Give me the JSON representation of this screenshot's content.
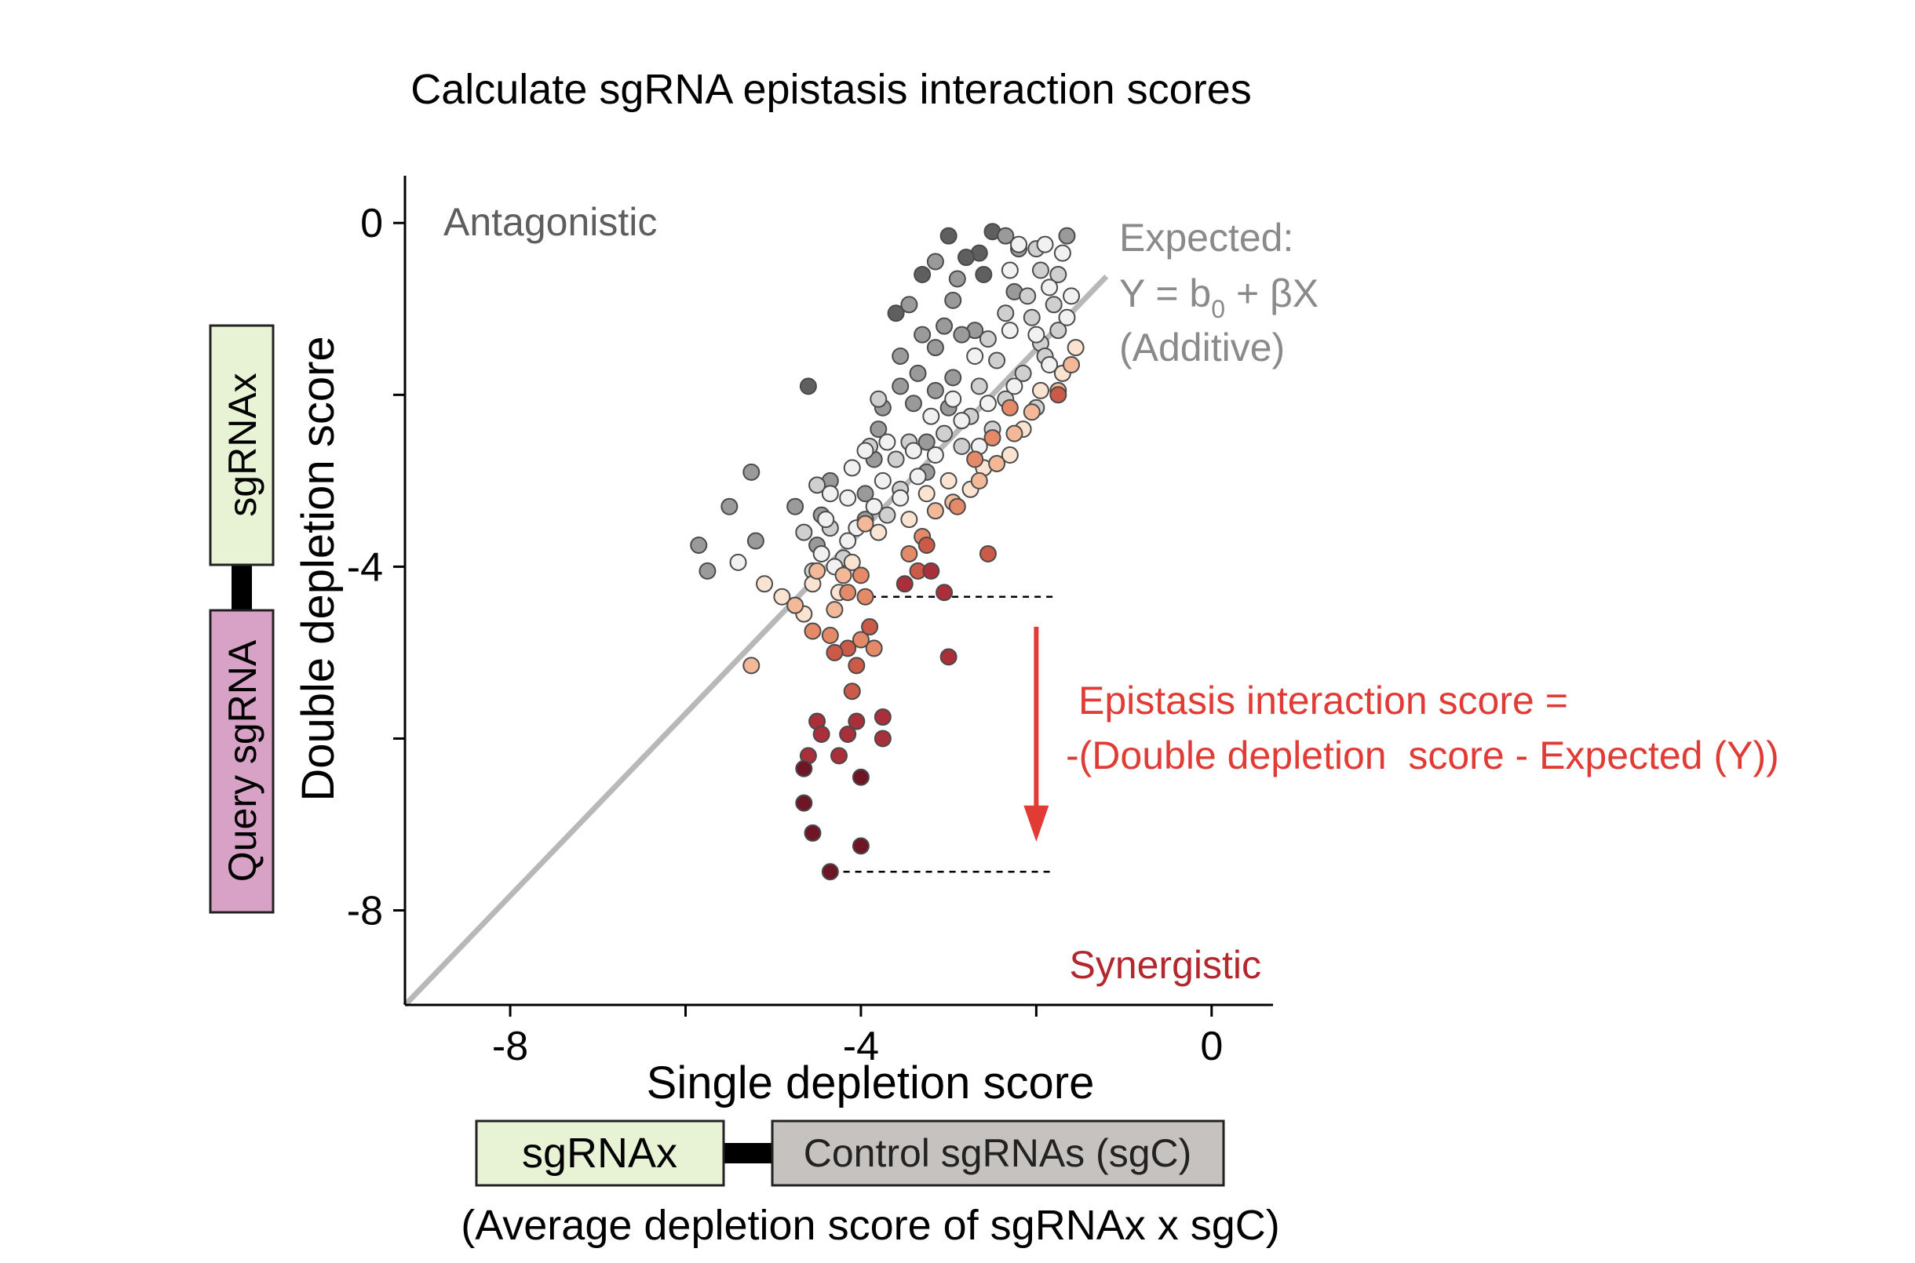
{
  "chart_data": {
    "type": "scatter",
    "title": "Calculate sgRNA epistasis interaction scores",
    "xlabel": "Single depletion score",
    "ylabel": "Double depletion score",
    "xlim": [
      -9.2,
      0.7
    ],
    "ylim": [
      -9.1,
      0.55
    ],
    "x_ticks": [
      -8,
      -6,
      -4,
      -2,
      0
    ],
    "x_tick_labels": [
      "-8",
      "",
      "-4",
      "",
      "0"
    ],
    "y_ticks": [
      0,
      -2,
      -4,
      -6,
      -8
    ],
    "y_tick_labels": [
      "0",
      "",
      "-4",
      "",
      "-8"
    ],
    "grid": false,
    "legend": "none",
    "colors": {
      "expected_line": "#b8b8b8",
      "antagonistic_text": "#5e5e5e",
      "expected_text": "#8a8a8a",
      "synergistic_text": "#b2282e",
      "epistasis_text": "#e03c35",
      "arrow": "#e03c35",
      "point_outline": "#4a4a4a",
      "palette": [
        "#5f5f5f",
        "#9a9a9a",
        "#cfcfcf",
        "#f1f1f1",
        "#fbe3d2",
        "#f2b898",
        "#e58a68",
        "#cc5a48",
        "#a9303a",
        "#6e1526"
      ]
    },
    "expected_line": {
      "intercept": 0.65,
      "slope": 1.06,
      "x_range": [
        -9.2,
        -1.2
      ]
    },
    "annotations": {
      "antagonistic": "Antagonistic",
      "synergistic": "Synergistic",
      "expected_line1": "Expected:",
      "expected_line2_prefix": "Y = b",
      "expected_line2_sub": "0",
      "expected_line2_suffix": " + βX",
      "expected_line3": "(Additive)",
      "epistasis_line1": "Epistasis interaction score =",
      "epistasis_line2": "-(Double depletion  score - Expected (Y))"
    },
    "guides": {
      "upper_dash": {
        "x": [
          -3.9,
          -1.8
        ],
        "y": -4.35
      },
      "lower_dash": {
        "x": [
          -4.2,
          -1.8
        ],
        "y": -7.55
      },
      "arrow": {
        "x": -2.0,
        "y_from": -4.7,
        "y_to": -7.2
      }
    },
    "points": [
      {
        "x": -3.0,
        "y": -0.15,
        "c": 0
      },
      {
        "x": -2.5,
        "y": -0.1,
        "c": 0
      },
      {
        "x": -2.65,
        "y": -0.35,
        "c": 0
      },
      {
        "x": -2.8,
        "y": -0.4,
        "c": 0
      },
      {
        "x": -3.3,
        "y": -0.6,
        "c": 0
      },
      {
        "x": -2.6,
        "y": -0.6,
        "c": 0
      },
      {
        "x": -3.6,
        "y": -1.05,
        "c": 0
      },
      {
        "x": -4.6,
        "y": -1.9,
        "c": 0
      },
      {
        "x": -2.35,
        "y": -0.15,
        "c": 1
      },
      {
        "x": -1.65,
        "y": -0.15,
        "c": 1
      },
      {
        "x": -2.2,
        "y": -0.3,
        "c": 1
      },
      {
        "x": -3.15,
        "y": -0.45,
        "c": 1
      },
      {
        "x": -2.9,
        "y": -0.65,
        "c": 1
      },
      {
        "x": -2.25,
        "y": -0.8,
        "c": 1
      },
      {
        "x": -3.45,
        "y": -0.95,
        "c": 1
      },
      {
        "x": -2.95,
        "y": -0.9,
        "c": 1
      },
      {
        "x": -2.7,
        "y": -1.25,
        "c": 1
      },
      {
        "x": -3.3,
        "y": -1.3,
        "c": 1
      },
      {
        "x": -3.05,
        "y": -1.2,
        "c": 1
      },
      {
        "x": -2.85,
        "y": -1.3,
        "c": 1
      },
      {
        "x": -3.15,
        "y": -1.45,
        "c": 1
      },
      {
        "x": -3.55,
        "y": -1.55,
        "c": 1
      },
      {
        "x": -3.35,
        "y": -1.75,
        "c": 1
      },
      {
        "x": -2.95,
        "y": -1.8,
        "c": 1
      },
      {
        "x": -3.55,
        "y": -1.9,
        "c": 1
      },
      {
        "x": -3.15,
        "y": -1.95,
        "c": 1
      },
      {
        "x": -3.75,
        "y": -2.15,
        "c": 1
      },
      {
        "x": -3.4,
        "y": -2.1,
        "c": 1
      },
      {
        "x": -3.0,
        "y": -2.15,
        "c": 1
      },
      {
        "x": -3.8,
        "y": -2.4,
        "c": 1
      },
      {
        "x": -3.25,
        "y": -2.55,
        "c": 1
      },
      {
        "x": -3.85,
        "y": -2.75,
        "c": 1
      },
      {
        "x": -5.25,
        "y": -2.9,
        "c": 1
      },
      {
        "x": -5.5,
        "y": -3.3,
        "c": 1
      },
      {
        "x": -4.75,
        "y": -3.3,
        "c": 1
      },
      {
        "x": -3.95,
        "y": -3.45,
        "c": 1
      },
      {
        "x": -5.85,
        "y": -3.75,
        "c": 1
      },
      {
        "x": -5.2,
        "y": -3.7,
        "c": 1
      },
      {
        "x": -4.5,
        "y": -3.75,
        "c": 1
      },
      {
        "x": -5.75,
        "y": -4.05,
        "c": 1
      },
      {
        "x": -4.35,
        "y": -3.0,
        "c": 1
      },
      {
        "x": -4.45,
        "y": -3.4,
        "c": 1
      },
      {
        "x": -3.95,
        "y": -3.15,
        "c": 1
      },
      {
        "x": -3.25,
        "y": -2.9,
        "c": 1
      },
      {
        "x": -2.0,
        "y": -0.3,
        "c": 2
      },
      {
        "x": -1.95,
        "y": -0.55,
        "c": 2
      },
      {
        "x": -1.75,
        "y": -0.6,
        "c": 2
      },
      {
        "x": -2.1,
        "y": -0.85,
        "c": 2
      },
      {
        "x": -1.8,
        "y": -0.95,
        "c": 2
      },
      {
        "x": -2.05,
        "y": -1.1,
        "c": 2
      },
      {
        "x": -1.75,
        "y": -1.25,
        "c": 2
      },
      {
        "x": -2.35,
        "y": -1.05,
        "c": 2
      },
      {
        "x": -2.55,
        "y": -1.35,
        "c": 2
      },
      {
        "x": -1.95,
        "y": -1.4,
        "c": 2
      },
      {
        "x": -2.45,
        "y": -1.6,
        "c": 2
      },
      {
        "x": -2.15,
        "y": -1.75,
        "c": 2
      },
      {
        "x": -1.9,
        "y": -1.55,
        "c": 2
      },
      {
        "x": -2.65,
        "y": -1.9,
        "c": 2
      },
      {
        "x": -2.35,
        "y": -2.05,
        "c": 2
      },
      {
        "x": -2.0,
        "y": -2.15,
        "c": 2
      },
      {
        "x": -2.75,
        "y": -2.25,
        "c": 2
      },
      {
        "x": -2.5,
        "y": -2.4,
        "c": 2
      },
      {
        "x": -2.85,
        "y": -2.6,
        "c": 2
      },
      {
        "x": -3.05,
        "y": -2.45,
        "c": 2
      },
      {
        "x": -3.45,
        "y": -2.55,
        "c": 2
      },
      {
        "x": -3.6,
        "y": -2.75,
        "c": 2
      },
      {
        "x": -3.9,
        "y": -2.6,
        "c": 2
      },
      {
        "x": -3.8,
        "y": -2.05,
        "c": 2
      },
      {
        "x": -4.5,
        "y": -3.05,
        "c": 2
      },
      {
        "x": -4.65,
        "y": -3.6,
        "c": 2
      },
      {
        "x": -4.55,
        "y": -4.05,
        "c": 2
      },
      {
        "x": -4.2,
        "y": -3.9,
        "c": 2
      },
      {
        "x": -4.35,
        "y": -3.55,
        "c": 2
      },
      {
        "x": -3.7,
        "y": -3.4,
        "c": 2
      },
      {
        "x": -3.55,
        "y": -3.1,
        "c": 2
      },
      {
        "x": -2.2,
        "y": -0.25,
        "c": 3
      },
      {
        "x": -1.9,
        "y": -0.25,
        "c": 3
      },
      {
        "x": -1.7,
        "y": -0.35,
        "c": 3
      },
      {
        "x": -2.3,
        "y": -0.55,
        "c": 3
      },
      {
        "x": -1.85,
        "y": -0.75,
        "c": 3
      },
      {
        "x": -1.6,
        "y": -0.85,
        "c": 3
      },
      {
        "x": -2.3,
        "y": -1.25,
        "c": 3
      },
      {
        "x": -1.65,
        "y": -1.1,
        "c": 3
      },
      {
        "x": -2.0,
        "y": -1.3,
        "c": 3
      },
      {
        "x": -2.7,
        "y": -1.55,
        "c": 3
      },
      {
        "x": -1.85,
        "y": -1.65,
        "c": 3
      },
      {
        "x": -2.25,
        "y": -1.9,
        "c": 3
      },
      {
        "x": -2.95,
        "y": -2.05,
        "c": 3
      },
      {
        "x": -2.55,
        "y": -2.1,
        "c": 3
      },
      {
        "x": -2.85,
        "y": -2.3,
        "c": 3
      },
      {
        "x": -3.2,
        "y": -2.25,
        "c": 3
      },
      {
        "x": -2.65,
        "y": -2.6,
        "c": 3
      },
      {
        "x": -3.15,
        "y": -2.7,
        "c": 3
      },
      {
        "x": -3.4,
        "y": -2.65,
        "c": 3
      },
      {
        "x": -3.7,
        "y": -2.55,
        "c": 3
      },
      {
        "x": -3.95,
        "y": -2.65,
        "c": 3
      },
      {
        "x": -4.1,
        "y": -2.85,
        "c": 3
      },
      {
        "x": -3.75,
        "y": -3.0,
        "c": 3
      },
      {
        "x": -3.35,
        "y": -2.95,
        "c": 3
      },
      {
        "x": -3.55,
        "y": -3.2,
        "c": 3
      },
      {
        "x": -3.85,
        "y": -3.3,
        "c": 3
      },
      {
        "x": -4.15,
        "y": -3.2,
        "c": 3
      },
      {
        "x": -4.35,
        "y": -3.15,
        "c": 3
      },
      {
        "x": -4.05,
        "y": -3.55,
        "c": 3
      },
      {
        "x": -4.4,
        "y": -3.45,
        "c": 3
      },
      {
        "x": -4.15,
        "y": -3.7,
        "c": 3
      },
      {
        "x": -4.45,
        "y": -3.85,
        "c": 3
      },
      {
        "x": -4.3,
        "y": -4.0,
        "c": 3
      },
      {
        "x": -5.4,
        "y": -3.95,
        "c": 3
      },
      {
        "x": -1.55,
        "y": -1.45,
        "c": 4
      },
      {
        "x": -1.7,
        "y": -1.75,
        "c": 4
      },
      {
        "x": -1.95,
        "y": -1.95,
        "c": 4
      },
      {
        "x": -2.15,
        "y": -2.4,
        "c": 4
      },
      {
        "x": -2.3,
        "y": -2.7,
        "c": 4
      },
      {
        "x": -2.6,
        "y": -2.85,
        "c": 4
      },
      {
        "x": -2.75,
        "y": -3.1,
        "c": 4
      },
      {
        "x": -3.0,
        "y": -3.0,
        "c": 4
      },
      {
        "x": -3.25,
        "y": -3.15,
        "c": 4
      },
      {
        "x": -3.45,
        "y": -3.45,
        "c": 4
      },
      {
        "x": -3.8,
        "y": -3.6,
        "c": 4
      },
      {
        "x": -4.1,
        "y": -3.95,
        "c": 4
      },
      {
        "x": -4.25,
        "y": -4.3,
        "c": 4
      },
      {
        "x": -4.55,
        "y": -4.2,
        "c": 4
      },
      {
        "x": -5.1,
        "y": -4.2,
        "c": 4
      },
      {
        "x": -4.9,
        "y": -4.35,
        "c": 4
      },
      {
        "x": -4.65,
        "y": -4.55,
        "c": 4
      },
      {
        "x": -1.6,
        "y": -1.65,
        "c": 5
      },
      {
        "x": -1.75,
        "y": -1.95,
        "c": 5
      },
      {
        "x": -2.05,
        "y": -2.2,
        "c": 5
      },
      {
        "x": -2.25,
        "y": -2.45,
        "c": 5
      },
      {
        "x": -2.45,
        "y": -2.8,
        "c": 5
      },
      {
        "x": -2.65,
        "y": -3.0,
        "c": 5
      },
      {
        "x": -2.95,
        "y": -3.25,
        "c": 5
      },
      {
        "x": -3.15,
        "y": -3.35,
        "c": 5
      },
      {
        "x": -3.95,
        "y": -3.5,
        "c": 5
      },
      {
        "x": -4.3,
        "y": -4.5,
        "c": 5
      },
      {
        "x": -4.75,
        "y": -4.45,
        "c": 5
      },
      {
        "x": -5.25,
        "y": -5.15,
        "c": 5
      },
      {
        "x": -4.2,
        "y": -4.1,
        "c": 5
      },
      {
        "x": -4.5,
        "y": -4.05,
        "c": 5
      },
      {
        "x": -2.3,
        "y": -2.15,
        "c": 6
      },
      {
        "x": -2.5,
        "y": -2.5,
        "c": 6
      },
      {
        "x": -2.7,
        "y": -2.75,
        "c": 6
      },
      {
        "x": -2.9,
        "y": -3.3,
        "c": 6
      },
      {
        "x": -3.3,
        "y": -3.65,
        "c": 6
      },
      {
        "x": -3.45,
        "y": -3.85,
        "c": 6
      },
      {
        "x": -4.0,
        "y": -4.1,
        "c": 6
      },
      {
        "x": -4.15,
        "y": -4.3,
        "c": 6
      },
      {
        "x": -4.35,
        "y": -4.8,
        "c": 6
      },
      {
        "x": -4.55,
        "y": -4.75,
        "c": 6
      },
      {
        "x": -3.95,
        "y": -4.35,
        "c": 6
      },
      {
        "x": -4.0,
        "y": -4.85,
        "c": 6
      },
      {
        "x": -3.85,
        "y": -4.95,
        "c": 6
      },
      {
        "x": -1.75,
        "y": -2.0,
        "c": 7
      },
      {
        "x": -3.25,
        "y": -3.75,
        "c": 7
      },
      {
        "x": -3.35,
        "y": -4.05,
        "c": 7
      },
      {
        "x": -4.15,
        "y": -4.95,
        "c": 7
      },
      {
        "x": -4.3,
        "y": -5.0,
        "c": 7
      },
      {
        "x": -3.9,
        "y": -4.7,
        "c": 7
      },
      {
        "x": -4.05,
        "y": -5.15,
        "c": 7
      },
      {
        "x": -4.1,
        "y": -5.45,
        "c": 7
      },
      {
        "x": -2.55,
        "y": -3.85,
        "c": 7
      },
      {
        "x": -3.5,
        "y": -4.2,
        "c": 8
      },
      {
        "x": -3.2,
        "y": -4.05,
        "c": 8
      },
      {
        "x": -3.05,
        "y": -4.3,
        "c": 8
      },
      {
        "x": -3.0,
        "y": -5.05,
        "c": 8
      },
      {
        "x": -3.75,
        "y": -5.75,
        "c": 8
      },
      {
        "x": -4.05,
        "y": -5.8,
        "c": 8
      },
      {
        "x": -4.5,
        "y": -5.8,
        "c": 8
      },
      {
        "x": -4.45,
        "y": -5.95,
        "c": 8
      },
      {
        "x": -4.15,
        "y": -5.95,
        "c": 8
      },
      {
        "x": -3.75,
        "y": -6.0,
        "c": 8
      },
      {
        "x": -4.25,
        "y": -6.2,
        "c": 8
      },
      {
        "x": -4.6,
        "y": -6.2,
        "c": 8
      },
      {
        "x": -4.65,
        "y": -6.35,
        "c": 9
      },
      {
        "x": -4.0,
        "y": -6.45,
        "c": 9
      },
      {
        "x": -4.65,
        "y": -6.75,
        "c": 9
      },
      {
        "x": -4.55,
        "y": -7.1,
        "c": 9
      },
      {
        "x": -4.0,
        "y": -7.25,
        "c": 9
      },
      {
        "x": -4.35,
        "y": -7.55,
        "c": 9
      }
    ]
  },
  "construct_labels": {
    "vertical_sgrnax": "sgRNAx",
    "vertical_query": "Query sgRNA",
    "horizontal_sgrnax": "sgRNAx",
    "horizontal_control": "Control sgRNAs (sgC)",
    "caption": "(Average depletion score of sgRNAx x sgC)",
    "colors": {
      "sgrnax_fill": "#e8f2d4",
      "query_fill": "#d8a2c6",
      "control_fill": "#c6c2c0",
      "border": "#222222",
      "linker": "#000000"
    }
  }
}
